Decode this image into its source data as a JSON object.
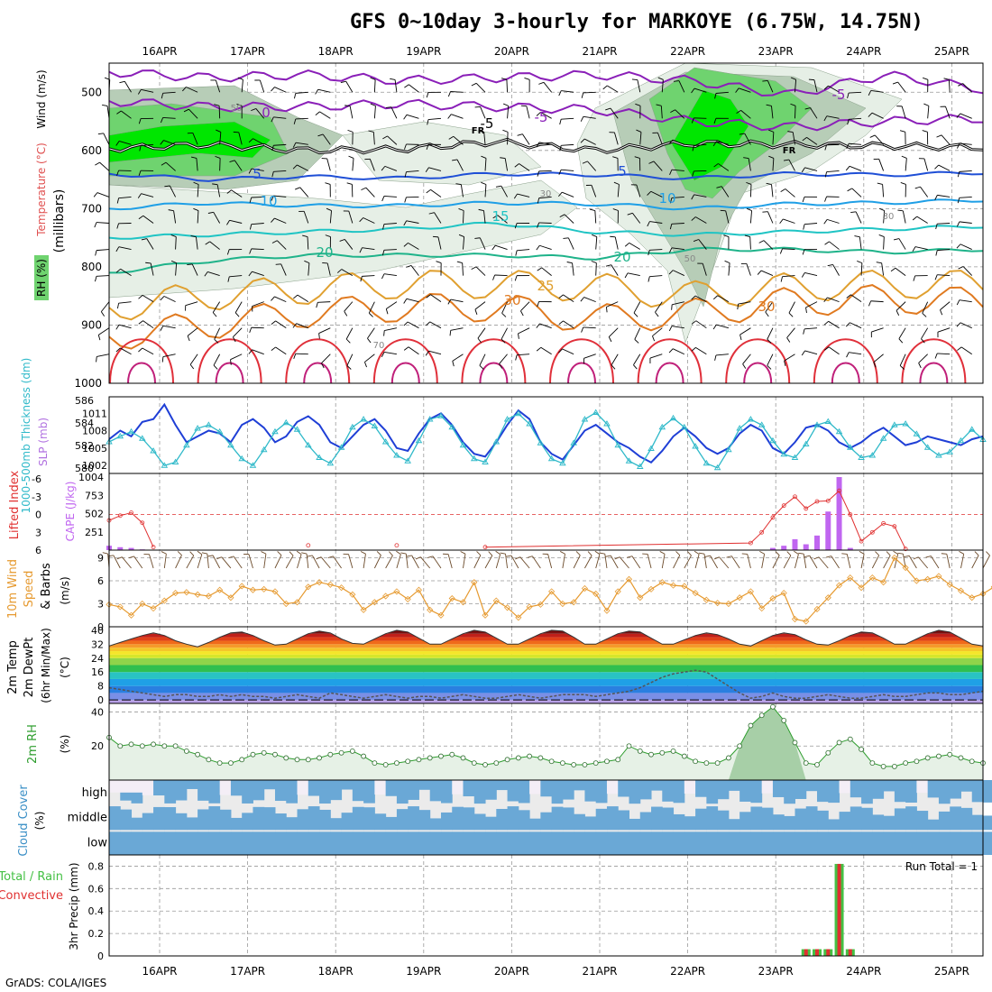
{
  "title": "GFS 0~10day 3-hourly for MARKOYE (6.75W, 14.75N)",
  "footer": "GrADS: COLA/IGES",
  "colors": {
    "grid": "#999999",
    "wind_barb": "#000000",
    "rh_light": "#e6efe6",
    "rh_mid": "#b7cdb7",
    "rh_dark": "#6fd36f",
    "rh_peak": "#00e600",
    "slp": "#1f3fd6",
    "thickness": "#2fb9c9",
    "cape": "#c066f0",
    "lifted": "#e03030",
    "wind10": "#e69a30",
    "barb10": "#6b4a2a",
    "rh2m": "#2f9e2f",
    "cloud": "#6aa8d6",
    "rain_total": "#44c044",
    "rain_conv": "#e03030"
  },
  "dates": [
    "16APR",
    "17APR",
    "18APR",
    "19APR",
    "20APR",
    "21APR",
    "22APR",
    "23APR",
    "24APR",
    "25APR"
  ],
  "chart_data": [
    {
      "type": "heatmap",
      "panel": "upper-air",
      "ylabels": [
        "RH (%)",
        "Temperature (°C)",
        "Wind (m/s)"
      ],
      "yaxis_label": "(millibars)",
      "yticks": [
        500,
        600,
        700,
        800,
        900,
        1000
      ],
      "ylim": [
        450,
        1000
      ],
      "x": [
        "16APR",
        "17APR",
        "18APR",
        "19APR",
        "20APR",
        "21APR",
        "22APR",
        "23APR",
        "24APR",
        "25APR"
      ],
      "contour_labels": [
        "-5",
        "0",
        "-5",
        "-5",
        "5",
        "5",
        "10",
        "10",
        "15",
        "20",
        "20",
        "25",
        "30",
        "30",
        "FR",
        "FR",
        "30",
        "30",
        "50",
        "50",
        "70"
      ],
      "freezing_level_mb": [
        597,
        590,
        600,
        598,
        585,
        600,
        588,
        590,
        592,
        595
      ],
      "isotherms": [
        {
          "value": -5,
          "mb": [
            465,
            475,
            470,
            480,
            475,
            470,
            480,
            505,
            470,
            495
          ]
        },
        {
          "value": 0,
          "mb": [
            515,
            525,
            525,
            520,
            525,
            530,
            550,
            560,
            550,
            545
          ]
        },
        {
          "value": 5,
          "mb": [
            640,
            650,
            645,
            648,
            640,
            642,
            648,
            640,
            642,
            638
          ]
        },
        {
          "value": 10,
          "mb": [
            700,
            690,
            695,
            695,
            690,
            692,
            700,
            692,
            690,
            685
          ]
        },
        {
          "value": 15,
          "mb": [
            750,
            745,
            740,
            735,
            725,
            740,
            745,
            740,
            735,
            730
          ]
        },
        {
          "value": 20,
          "mb": [
            810,
            790,
            780,
            780,
            780,
            785,
            770,
            770,
            775,
            770
          ]
        },
        {
          "value": 25,
          "mb": [
            870,
            850,
            840,
            830,
            830,
            835,
            850,
            835,
            830,
            830
          ]
        },
        {
          "value": 30,
          "mb": [
            920,
            900,
            880,
            870,
            870,
            890,
            880,
            860,
            855,
            860
          ]
        }
      ],
      "rh_pct": [
        [
          1000,
          30
        ],
        [
          900,
          30
        ],
        [
          800,
          30
        ],
        [
          700,
          50
        ],
        [
          600,
          70
        ]
      ]
    },
    {
      "type": "line",
      "panel": "slp-thickness",
      "ylabel_left": "1000-500mb Thickness (dm)",
      "ylabel_right": "SLP (mb)",
      "yticks_left": [
        580,
        582,
        584,
        586
      ],
      "yticks_right": [
        1002,
        1005,
        1008,
        1011
      ],
      "ylim_left": [
        579.5,
        586.3
      ],
      "series": [
        {
          "name": "SLP (mb)",
          "axis": "right",
          "values": [
            1006.5,
            1008,
            1007,
            1009.5,
            1010,
            1012.5,
            1009,
            1006,
            1007,
            1008,
            1007.5,
            1006,
            1009,
            1010,
            1008.5,
            1006,
            1007,
            1009.5,
            1010.5,
            1009,
            1006,
            1005,
            1007,
            1009,
            1010,
            1008,
            1005,
            1004.5,
            1007.5,
            1010,
            1011,
            1009,
            1006,
            1004,
            1003.5,
            1006,
            1009,
            1011.5,
            1010,
            1006,
            1004,
            1003,
            1005.5,
            1008,
            1009,
            1007.5,
            1006,
            1005,
            1003.5,
            1002.5,
            1004.5,
            1007,
            1008.5,
            1007,
            1005,
            1004,
            1005,
            1007.5,
            1009,
            1008,
            1005,
            1004,
            1006,
            1008.5,
            1009,
            1008,
            1006,
            1005,
            1006,
            1007.5,
            1008.5,
            1007,
            1005.5,
            1006,
            1007,
            1006.5,
            1006,
            1005.5,
            1006.5,
            1007
          ]
        },
        {
          "name": "1000-500mb Thickness (dm)",
          "axis": "left",
          "values": [
            582.3,
            582.8,
            583.2,
            582.6,
            581.5,
            580.2,
            580.5,
            582,
            583.5,
            583.8,
            583.2,
            582,
            580.8,
            580.2,
            581.6,
            583.2,
            584,
            583.4,
            582,
            580.9,
            580.4,
            581.8,
            583.6,
            584.3,
            583.7,
            582.3,
            581.1,
            580.6,
            582.4,
            584.3,
            584.6,
            583.6,
            582,
            580.8,
            580.5,
            582.3,
            584.3,
            584.8,
            583.9,
            582.2,
            580.8,
            580.4,
            582.2,
            584.3,
            584.9,
            583.9,
            582,
            580.6,
            580.1,
            581.7,
            583.6,
            584.4,
            583.6,
            581.9,
            580.4,
            580,
            581.6,
            583.5,
            584.3,
            583.8,
            582.4,
            581.2,
            580.9,
            582.1,
            583.8,
            584.1,
            583.2,
            581.8,
            580.9,
            581.1,
            582.6,
            583.8,
            583.9,
            583,
            581.8,
            581.1,
            581.4,
            582.4,
            583.4,
            582.5
          ]
        }
      ]
    },
    {
      "type": "bar",
      "panel": "cape-lifted-index",
      "ylabel_left": "Lifted Index",
      "ylabel_right": "CAPE (J/kg)",
      "yticks_left": [
        -6,
        -3,
        0,
        3,
        6
      ],
      "yticks_right": [
        251,
        502,
        753,
        1004
      ],
      "series": [
        {
          "name": "CAPE (J/kg)",
          "values": [
            {
              "i": 0,
              "v": 60
            },
            {
              "i": 1,
              "v": 40
            },
            {
              "i": 2,
              "v": 30
            },
            {
              "i": 3,
              "v": 10
            },
            {
              "i": 60,
              "v": 30
            },
            {
              "i": 61,
              "v": 60
            },
            {
              "i": 62,
              "v": 150
            },
            {
              "i": 63,
              "v": 80
            },
            {
              "i": 64,
              "v": 200
            },
            {
              "i": 65,
              "v": 530
            },
            {
              "i": 66,
              "v": 1004
            },
            {
              "i": 67,
              "v": 30
            }
          ]
        },
        {
          "name": "Lifted Index",
          "values": [
            {
              "i": 0,
              "v": 1
            },
            {
              "i": 1,
              "v": 0.2
            },
            {
              "i": 2,
              "v": -0.3
            },
            {
              "i": 3,
              "v": 1.4
            },
            {
              "i": 4,
              "v": 5.5
            },
            {
              "i": 18,
              "v": 5.2
            },
            {
              "i": 26,
              "v": 5.2
            },
            {
              "i": 34,
              "v": 5.5
            },
            {
              "i": 58,
              "v": 4.8
            },
            {
              "i": 59,
              "v": 3
            },
            {
              "i": 60,
              "v": 0.5
            },
            {
              "i": 61,
              "v": -1.5
            },
            {
              "i": 62,
              "v": -3
            },
            {
              "i": 63,
              "v": -1
            },
            {
              "i": 64,
              "v": -2.2
            },
            {
              "i": 65,
              "v": -2.3
            },
            {
              "i": 66,
              "v": -4
            },
            {
              "i": 67,
              "v": 0
            },
            {
              "i": 68,
              "v": 4.5
            },
            {
              "i": 69,
              "v": 3
            },
            {
              "i": 70,
              "v": 1.5
            },
            {
              "i": 71,
              "v": 2
            },
            {
              "i": 72,
              "v": 5.8
            }
          ]
        }
      ]
    },
    {
      "type": "line",
      "panel": "wind10m",
      "ylabel": "10m Wind Speed & Barbs (m/s)",
      "yticks": [
        0,
        3,
        6,
        9
      ],
      "ylim": [
        0,
        10
      ],
      "series": [
        {
          "name": "10m Wind Speed",
          "values": [
            2.9,
            2.6,
            1.5,
            3,
            2.4,
            3.4,
            4.4,
            4.5,
            4.2,
            4,
            4.8,
            3.8,
            5.3,
            4.8,
            4.9,
            4.6,
            3,
            3.2,
            5.2,
            5.8,
            5.5,
            5.1,
            4.2,
            2.2,
            3.2,
            4,
            4.6,
            3.6,
            4.8,
            2.2,
            1.5,
            3.7,
            3.2,
            5.8,
            1.5,
            3.4,
            2.5,
            1.2,
            2.6,
            2.9,
            4.6,
            3,
            3.2,
            5,
            4.3,
            2.1,
            4.6,
            6.2,
            3.8,
            4.9,
            5.8,
            5.4,
            5.3,
            4.4,
            3.5,
            3.1,
            3,
            3.8,
            4.6,
            2.4,
            3.7,
            4.4,
            1,
            0.7,
            2.3,
            3.8,
            5.4,
            6.4,
            5.1,
            6.4,
            5.8,
            9,
            7.7,
            6,
            6.2,
            6.6,
            5.5,
            4.7,
            3.8,
            4.3,
            5.2
          ]
        }
      ]
    },
    {
      "type": "area",
      "panel": "temp2m",
      "ylabel": "2m Temp 2m DewPt (6hr Min/Max) (°C)",
      "yticks": [
        0,
        8,
        16,
        24,
        32,
        40
      ],
      "ylim": [
        -2,
        42
      ],
      "series": [
        {
          "name": "2m Temp",
          "values": [
            31,
            33,
            35,
            37,
            38.5,
            37,
            34,
            32,
            30.5,
            33,
            36,
            38.5,
            39,
            37,
            34,
            31.5,
            32,
            35,
            38,
            39.5,
            38.5,
            35,
            32.5,
            32,
            35,
            38,
            40,
            39,
            35.5,
            32,
            32,
            35,
            38,
            40,
            39,
            35.5,
            32,
            32,
            35,
            38,
            40,
            39.5,
            36,
            32,
            32,
            35,
            38,
            39.5,
            39,
            35.5,
            32,
            32,
            34.5,
            37,
            38.5,
            37.5,
            35,
            32,
            31,
            34,
            37,
            38.5,
            37.5,
            34.5,
            32,
            31.5,
            34,
            37,
            39,
            38.5,
            35.5,
            32,
            32,
            35,
            38,
            40,
            39,
            35.5,
            32,
            31
          ]
        },
        {
          "name": "2m DewPt",
          "values": [
            7,
            6,
            5,
            4,
            3,
            2,
            3,
            3,
            2,
            2,
            3,
            2,
            3,
            2,
            2,
            1,
            2,
            3,
            2,
            1,
            4,
            3,
            2,
            1,
            2,
            3,
            2,
            1,
            2,
            2,
            1,
            2,
            3,
            2,
            1,
            1,
            2,
            3,
            2,
            1,
            2,
            3,
            3,
            3,
            2,
            3,
            4,
            5,
            7,
            10,
            13,
            15,
            16,
            17,
            16,
            12,
            8,
            4,
            1,
            2,
            4,
            2,
            1,
            1,
            2,
            3,
            2,
            1,
            1,
            2,
            3,
            2,
            2,
            3,
            4,
            4,
            3,
            3,
            4,
            5
          ]
        }
      ]
    },
    {
      "type": "area",
      "panel": "rh2m",
      "ylabel": "2m RH (%)",
      "yticks": [
        20,
        40
      ],
      "ylim": [
        0,
        45
      ],
      "series": [
        {
          "name": "2m RH",
          "values": [
            25,
            20,
            21,
            20,
            21,
            20,
            20,
            17,
            15,
            12,
            10,
            10,
            12,
            15,
            16,
            15,
            13,
            12,
            12,
            13,
            15,
            16,
            17,
            14,
            10,
            9,
            10,
            11,
            12,
            13,
            14,
            15,
            13,
            10,
            9,
            10,
            12,
            13,
            14,
            13,
            11,
            10,
            9,
            9,
            10,
            11,
            12,
            20,
            17,
            15,
            16,
            17,
            14,
            11,
            10,
            10,
            13,
            20,
            32,
            38,
            43,
            35,
            22,
            10,
            9,
            16,
            22,
            24,
            18,
            10,
            8,
            8,
            10,
            11,
            13,
            14,
            15,
            13,
            11,
            10
          ]
        }
      ]
    },
    {
      "type": "bar",
      "panel": "cloud-cover",
      "ylabel": "Cloud Cover (%)",
      "levels": [
        "high",
        "middle",
        "low"
      ]
    },
    {
      "type": "bar",
      "panel": "precip",
      "ylabel_total": "Total / Rain",
      "ylabel_conv": "Convective",
      "ylabel": "3hr Precip (mm)",
      "yticks": [
        0,
        0.2,
        0.4,
        0.6,
        0.8
      ],
      "ylim": [
        0,
        0.9
      ],
      "run_total": "Run Total = 1",
      "series": [
        {
          "name": "3hr Precip",
          "values": [
            {
              "i": 63,
              "v": 0.06
            },
            {
              "i": 64,
              "v": 0.06
            },
            {
              "i": 65,
              "v": 0.06
            },
            {
              "i": 66,
              "v": 0.82
            },
            {
              "i": 67,
              "v": 0.06
            }
          ]
        }
      ]
    }
  ]
}
